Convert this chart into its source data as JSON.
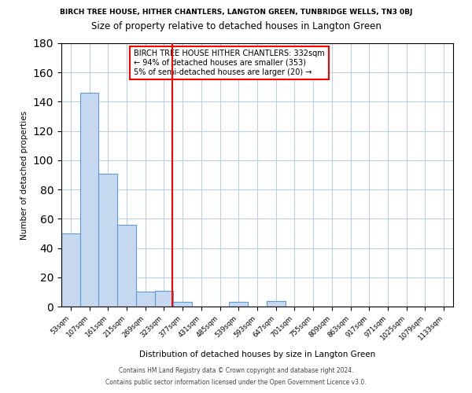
{
  "title_top": "BIRCH TREE HOUSE, HITHER CHANTLERS, LANGTON GREEN, TUNBRIDGE WELLS, TN3 0BJ",
  "title_sub": "Size of property relative to detached houses in Langton Green",
  "xlabel": "Distribution of detached houses by size in Langton Green",
  "ylabel": "Number of detached properties",
  "bin_labels": [
    "53sqm",
    "107sqm",
    "161sqm",
    "215sqm",
    "269sqm",
    "323sqm",
    "377sqm",
    "431sqm",
    "485sqm",
    "539sqm",
    "593sqm",
    "647sqm",
    "701sqm",
    "755sqm",
    "809sqm",
    "863sqm",
    "917sqm",
    "971sqm",
    "1025sqm",
    "1079sqm",
    "1133sqm"
  ],
  "bar_values": [
    50,
    146,
    91,
    56,
    10,
    11,
    3,
    0,
    0,
    3,
    0,
    4,
    0,
    0,
    0,
    0,
    0,
    0,
    0,
    0,
    0
  ],
  "bar_color": "#c6d9f1",
  "bar_edge_color": "#5b9bd5",
  "vline_x": 5.45,
  "vline_color": "red",
  "ylim": [
    0,
    180
  ],
  "yticks": [
    0,
    20,
    40,
    60,
    80,
    100,
    120,
    140,
    160,
    180
  ],
  "annotation_title": "BIRCH TREE HOUSE HITHER CHANTLERS: 332sqm",
  "annotation_line1": "← 94% of detached houses are smaller (353)",
  "annotation_line2": "5% of semi-detached houses are larger (20) →",
  "footer1": "Contains HM Land Registry data © Crown copyright and database right 2024.",
  "footer2": "Contains public sector information licensed under the Open Government Licence v3.0.",
  "background_color": "#ffffff",
  "grid_color": "#c0cfe0"
}
